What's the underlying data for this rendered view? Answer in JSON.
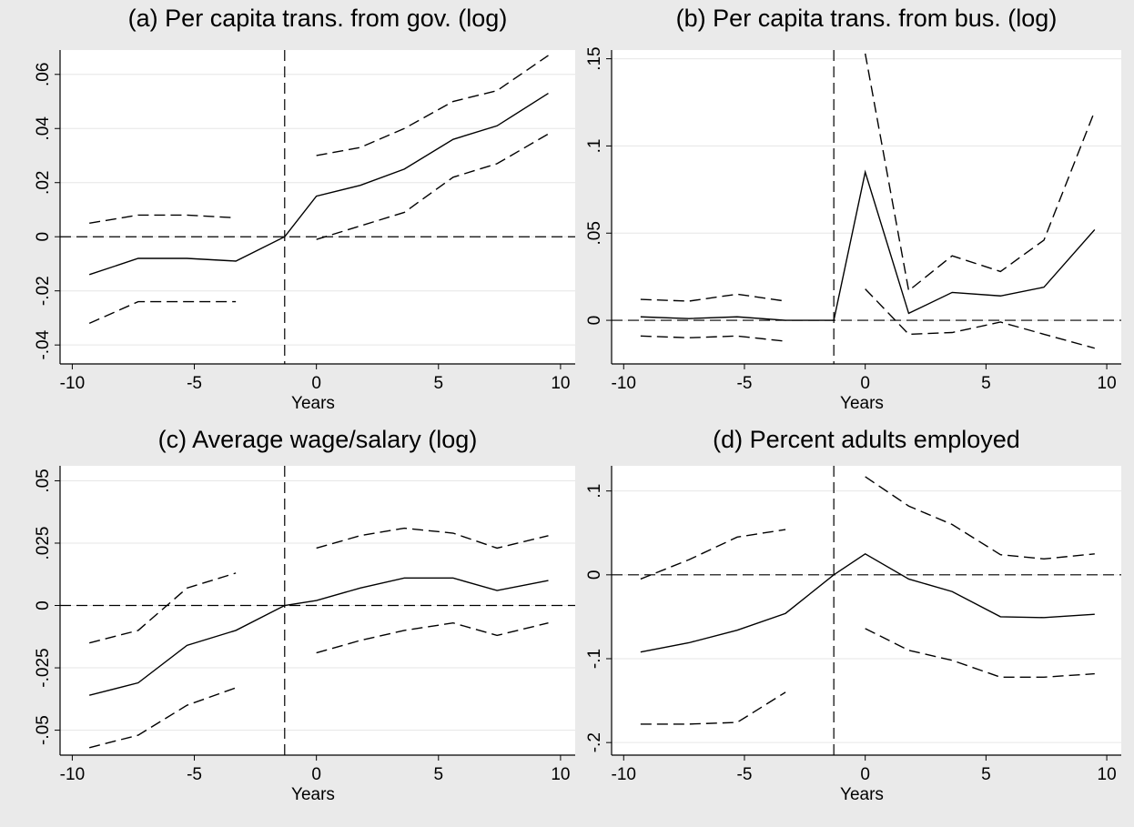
{
  "chart_data": [
    {
      "type": "line",
      "title": "(a) Per capita trans. from gov. (log)",
      "xlabel": "Years",
      "x": [
        -9.3,
        -7.3,
        -5.3,
        -3.3,
        -1.3,
        0,
        1.8,
        3.6,
        5.6,
        7.4,
        9.5
      ],
      "xlim": [
        -10.5,
        10.6
      ],
      "xticks": [
        -10,
        -5,
        0,
        5,
        10
      ],
      "ylim": [
        -0.047,
        0.069
      ],
      "yticks": [
        {
          "value": -0.04,
          "label": "-.04"
        },
        {
          "value": -0.02,
          "label": "-.02"
        },
        0,
        {
          "value": 0.02,
          "label": ".02"
        },
        {
          "value": 0.04,
          "label": ".04"
        },
        {
          "value": 0.06,
          "label": ".06"
        }
      ],
      "grid": true,
      "hline": 0,
      "vline": -1.3,
      "series": [
        {
          "color": "#000000",
          "dashed": false,
          "values": [
            -0.014,
            -0.008,
            -0.008,
            -0.009,
            0,
            0.015,
            0.019,
            0.025,
            0.036,
            0.041,
            0.053
          ]
        },
        {
          "color": "#000000",
          "dashed": true,
          "values": [
            0.005,
            0.008,
            0.008,
            0.007,
            null,
            0.03,
            0.033,
            0.04,
            0.05,
            0.054,
            0.067
          ]
        },
        {
          "color": "#000000",
          "dashed": true,
          "values": [
            -0.032,
            -0.024,
            -0.024,
            -0.024,
            null,
            -0.001,
            0.004,
            0.009,
            0.022,
            0.027,
            0.038
          ]
        }
      ]
    },
    {
      "type": "line",
      "title": "(b) Per capita trans. from bus. (log)",
      "xlabel": "Years",
      "x": [
        -9.3,
        -7.3,
        -5.3,
        -3.3,
        -1.3,
        0,
        1.8,
        3.6,
        5.6,
        7.4,
        9.5
      ],
      "xlim": [
        -10.5,
        10.6
      ],
      "xticks": [
        -10,
        -5,
        0,
        5,
        10
      ],
      "ylim": [
        -0.025,
        0.155
      ],
      "yticks": [
        0,
        {
          "value": 0.05,
          "label": ".05"
        },
        {
          "value": 0.1,
          "label": ".1"
        },
        {
          "value": 0.15,
          "label": ".15"
        }
      ],
      "grid": true,
      "hline": 0,
      "vline": -1.3,
      "series": [
        {
          "color": "#000000",
          "dashed": false,
          "values": [
            0.002,
            0.001,
            0.002,
            0.0,
            0,
            0.085,
            0.004,
            0.016,
            0.014,
            0.019,
            0.052
          ]
        },
        {
          "color": "#000000",
          "dashed": true,
          "values": [
            0.012,
            0.011,
            0.015,
            0.011,
            null,
            0.153,
            0.017,
            0.037,
            0.028,
            0.046,
            0.12
          ]
        },
        {
          "color": "#000000",
          "dashed": true,
          "values": [
            -0.009,
            -0.01,
            -0.009,
            -0.012,
            null,
            0.018,
            -0.008,
            -0.007,
            -0.001,
            -0.008,
            -0.016
          ]
        }
      ]
    },
    {
      "type": "line",
      "title": "(c) Average wage/salary (log)",
      "xlabel": "Years",
      "x": [
        -9.3,
        -7.3,
        -5.3,
        -3.3,
        -1.3,
        0,
        1.8,
        3.6,
        5.6,
        7.4,
        9.5
      ],
      "xlim": [
        -10.5,
        10.6
      ],
      "xticks": [
        -10,
        -5,
        0,
        5,
        10
      ],
      "ylim": [
        -0.06,
        0.056
      ],
      "yticks": [
        {
          "value": -0.05,
          "label": "-.05"
        },
        {
          "value": -0.025,
          "label": "-.025"
        },
        0,
        {
          "value": 0.025,
          "label": ".025"
        },
        {
          "value": 0.05,
          "label": ".05"
        }
      ],
      "grid": true,
      "hline": 0,
      "vline": -1.3,
      "series": [
        {
          "color": "#000000",
          "dashed": false,
          "values": [
            -0.036,
            -0.031,
            -0.016,
            -0.01,
            0,
            0.002,
            0.007,
            0.011,
            0.011,
            0.006,
            0.01
          ]
        },
        {
          "color": "#000000",
          "dashed": true,
          "values": [
            -0.015,
            -0.01,
            0.007,
            0.013,
            null,
            0.023,
            0.028,
            0.031,
            0.029,
            0.023,
            0.028
          ]
        },
        {
          "color": "#000000",
          "dashed": true,
          "values": [
            -0.057,
            -0.052,
            -0.04,
            -0.033,
            null,
            -0.019,
            -0.014,
            -0.01,
            -0.007,
            -0.012,
            -0.007
          ]
        }
      ]
    },
    {
      "type": "line",
      "title": "(d) Percent adults employed",
      "xlabel": "Years",
      "x": [
        -9.3,
        -7.3,
        -5.3,
        -3.3,
        -1.3,
        0,
        1.8,
        3.6,
        5.6,
        7.4,
        9.5
      ],
      "xlim": [
        -10.5,
        10.6
      ],
      "xticks": [
        -10,
        -5,
        0,
        5,
        10
      ],
      "ylim": [
        -0.215,
        0.13
      ],
      "yticks": [
        {
          "value": -0.2,
          "label": "-.2"
        },
        {
          "value": -0.1,
          "label": "-.1"
        },
        0,
        {
          "value": 0.1,
          "label": ".1"
        }
      ],
      "grid": true,
      "hline": 0,
      "vline": -1.3,
      "series": [
        {
          "color": "#000000",
          "dashed": false,
          "values": [
            -0.092,
            -0.081,
            -0.066,
            -0.046,
            0,
            0.025,
            -0.005,
            -0.02,
            -0.05,
            -0.051,
            -0.047
          ]
        },
        {
          "color": "#000000",
          "dashed": true,
          "values": [
            -0.005,
            0.018,
            0.045,
            0.054,
            null,
            0.117,
            0.082,
            0.06,
            0.024,
            0.019,
            0.025
          ]
        },
        {
          "color": "#000000",
          "dashed": true,
          "values": [
            -0.178,
            -0.178,
            -0.176,
            -0.14,
            null,
            -0.064,
            -0.09,
            -0.102,
            -0.122,
            -0.122,
            -0.118
          ]
        }
      ]
    }
  ]
}
